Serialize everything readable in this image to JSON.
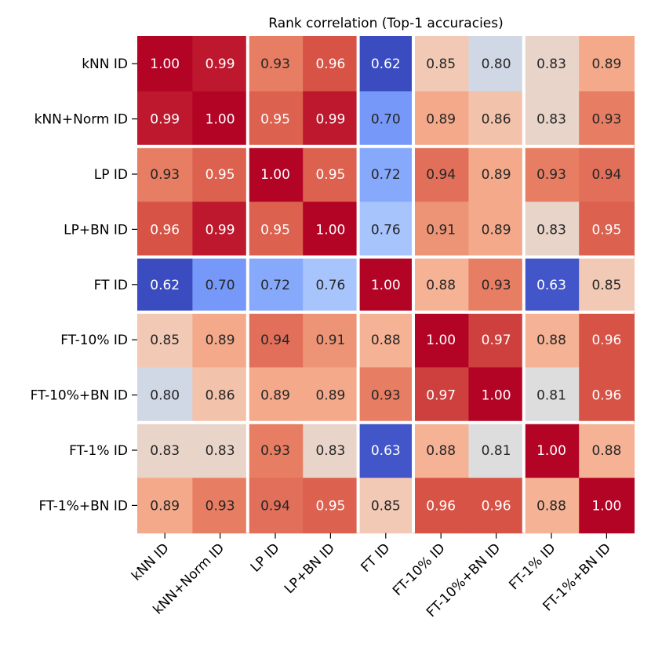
{
  "chart_data": {
    "type": "heatmap",
    "title": "Rank correlation (Top-1 accuracies)",
    "xlabel": "",
    "ylabel": "",
    "colormap": "coolwarm",
    "color_range": [
      0.62,
      1.0
    ],
    "group_separators_after": [
      1,
      3,
      4,
      6
    ],
    "separator_color": "#ffffff",
    "x_labels": [
      "kNN ID",
      "kNN+Norm ID",
      "LP ID",
      "LP+BN ID",
      "FT ID",
      "FT-10% ID",
      "FT-10%+BN ID",
      "FT-1% ID",
      "FT-1%+BN ID"
    ],
    "y_labels": [
      "kNN ID",
      "kNN+Norm ID",
      "LP ID",
      "LP+BN ID",
      "FT ID",
      "FT-10% ID",
      "FT-10%+BN ID",
      "FT-1% ID",
      "FT-1%+BN ID"
    ],
    "values": [
      [
        1.0,
        0.99,
        0.93,
        0.96,
        0.62,
        0.85,
        0.8,
        0.83,
        0.89
      ],
      [
        0.99,
        1.0,
        0.95,
        0.99,
        0.7,
        0.89,
        0.86,
        0.83,
        0.93
      ],
      [
        0.93,
        0.95,
        1.0,
        0.95,
        0.72,
        0.94,
        0.89,
        0.93,
        0.94
      ],
      [
        0.96,
        0.99,
        0.95,
        1.0,
        0.76,
        0.91,
        0.89,
        0.83,
        0.95
      ],
      [
        0.62,
        0.7,
        0.72,
        0.76,
        1.0,
        0.88,
        0.93,
        0.63,
        0.85
      ],
      [
        0.85,
        0.89,
        0.94,
        0.91,
        0.88,
        1.0,
        0.97,
        0.88,
        0.96
      ],
      [
        0.8,
        0.86,
        0.89,
        0.89,
        0.93,
        0.97,
        1.0,
        0.81,
        0.96
      ],
      [
        0.83,
        0.83,
        0.93,
        0.83,
        0.63,
        0.88,
        0.81,
        1.0,
        0.88
      ],
      [
        0.89,
        0.93,
        0.94,
        0.95,
        0.85,
        0.96,
        0.96,
        0.88,
        1.0
      ]
    ]
  }
}
